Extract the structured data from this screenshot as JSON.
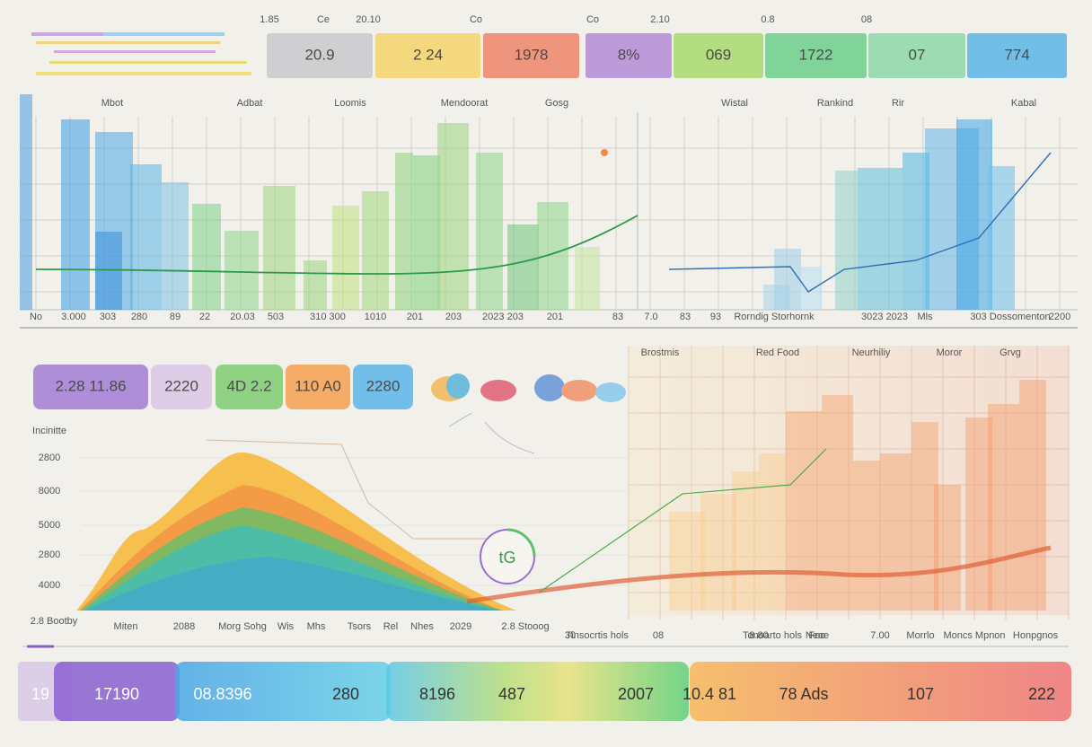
{
  "top_labels": [
    "1.85",
    "Ce",
    "20.10",
    "Co",
    "Co",
    "2.10",
    "0.8",
    "08"
  ],
  "top_tiles": [
    "20.9",
    "2 24",
    "1978",
    "8%",
    "069",
    "1722",
    "07",
    "774"
  ],
  "top_chart": {
    "headers": [
      "Mbot",
      "Adbat",
      "Loomis",
      "Mendoorat",
      "Gosg",
      "Wistal",
      "Rankind",
      "Rir",
      "Kabal"
    ],
    "footer": [
      "No",
      "3.000",
      "303",
      "280",
      "89",
      "22",
      "20.03",
      "503",
      "310 300",
      "1010",
      "201",
      "203",
      "2023 203",
      "201",
      "83",
      "7.0",
      "83",
      "93",
      "Rorndig Storhornk",
      "3023 2023",
      "Mls",
      "303 Dossomenton",
      "2200"
    ]
  },
  "mid_tiles": [
    "2.28  11.86",
    "2220",
    "4D 2.2",
    "110 A0",
    "2280"
  ],
  "lower_chart": {
    "y_title": "Incinitte",
    "y_labels": [
      "2800",
      "8000",
      "5000",
      "2800",
      "4000"
    ],
    "corner": "2.8 Bootby",
    "headers": [
      "Brostmis",
      "Red Food",
      "Neurhiliy",
      "Moror",
      "Grvg"
    ],
    "footer": [
      "Miten",
      "2088",
      "Morg Sohg",
      "Wis",
      "Mhs",
      "Tsors",
      "Rel",
      "Nhes",
      "2029",
      "2.8 Stooog",
      "30",
      "Tinsocrtis hols",
      "08",
      "Tonoarto hols",
      "8.80",
      "Neoe",
      "Foo",
      "7.00",
      "Morrlo",
      "Moncs Mpnon",
      "Honpgnos"
    ]
  },
  "logo": "tG",
  "bottom_bar": [
    "19",
    "17190",
    "08.8396",
    "280",
    "8196",
    "487",
    "2007",
    "10.4 81",
    "78 Ads",
    "107",
    "222"
  ]
}
